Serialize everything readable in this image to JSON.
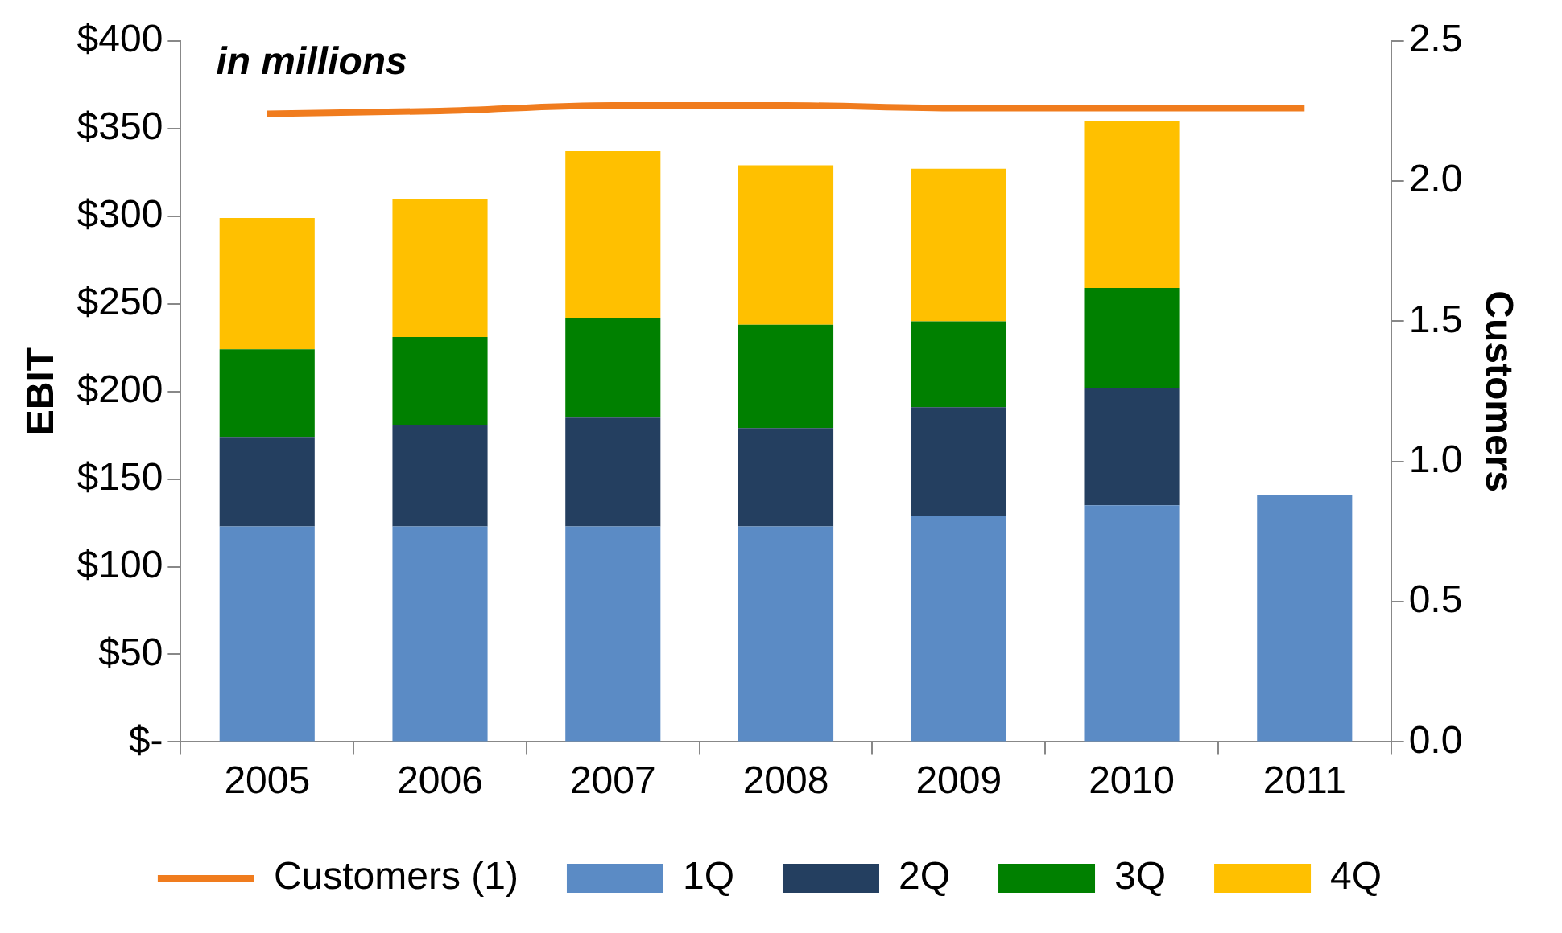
{
  "chart_data": {
    "type": "bar",
    "stacked": true,
    "ylabel": "EBIT",
    "y2label": "Customers",
    "annotations": [
      "in millions"
    ],
    "categories": [
      "2005",
      "2006",
      "2007",
      "2008",
      "2009",
      "2010",
      "2011"
    ],
    "series": [
      {
        "name": "1Q",
        "color": "#5b8bc5",
        "values": [
          123,
          123,
          123,
          123,
          129,
          135,
          141
        ]
      },
      {
        "name": "2Q",
        "color": "#243f60",
        "values": [
          51,
          58,
          62,
          56,
          62,
          67,
          null
        ]
      },
      {
        "name": "3Q",
        "color": "#008000",
        "values": [
          50,
          50,
          57,
          59,
          49,
          57,
          null
        ]
      },
      {
        "name": "4Q",
        "color": "#ffc000",
        "values": [
          75,
          79,
          95,
          91,
          87,
          95,
          null
        ]
      },
      {
        "name": "Customers (1)",
        "type": "line",
        "axis": "y2",
        "color": "#f07c1e",
        "marker": "none",
        "values": [
          2.24,
          2.25,
          2.27,
          2.27,
          2.26,
          2.26,
          2.26
        ]
      }
    ],
    "ylim": [
      0,
      400
    ],
    "yticks": [
      {
        "value": 0,
        "label": "$-"
      },
      {
        "value": 50,
        "label": "$50"
      },
      {
        "value": 100,
        "label": "$100"
      },
      {
        "value": 150,
        "label": "$150"
      },
      {
        "value": 200,
        "label": "$200"
      },
      {
        "value": 250,
        "label": "$250"
      },
      {
        "value": 300,
        "label": "$300"
      },
      {
        "value": 350,
        "label": "$350"
      },
      {
        "value": 400,
        "label": "$400"
      }
    ],
    "y2lim": [
      0,
      2.5
    ],
    "y2ticks": [
      {
        "value": 0,
        "label": "0.0"
      },
      {
        "value": 0.5,
        "label": "0.5"
      },
      {
        "value": 1,
        "label": "1.0"
      },
      {
        "value": 1.5,
        "label": "1.5"
      },
      {
        "value": 2,
        "label": "2.0"
      },
      {
        "value": 2.5,
        "label": "2.5"
      }
    ],
    "grid": false,
    "legend": "bottom"
  }
}
